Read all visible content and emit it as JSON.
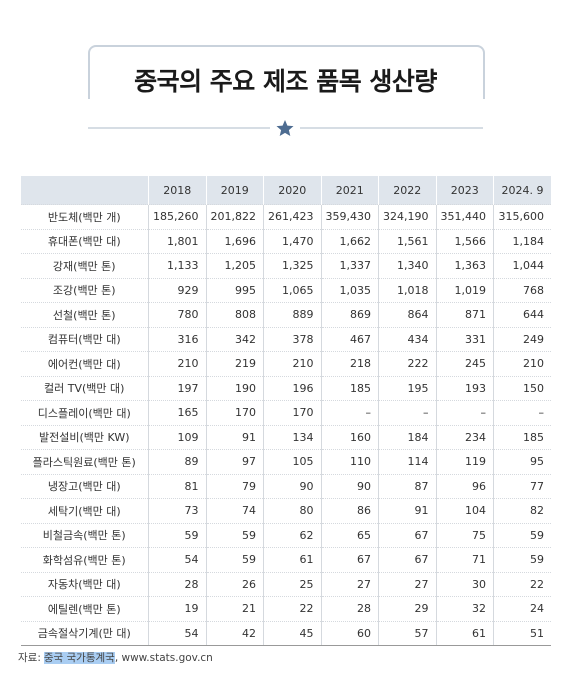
{
  "title": "중국의 주요 제조 품목 생산량",
  "table": {
    "header": [
      "2018",
      "2019",
      "2020",
      "2021",
      "2022",
      "2023",
      "2024. 9"
    ],
    "rows": [
      [
        "반도체(백만 개)",
        "185,260",
        "201,822",
        "261,423",
        "359,430",
        "324,190",
        "351,440",
        "315,600"
      ],
      [
        "휴대폰(백만 대)",
        "1,801",
        "1,696",
        "1,470",
        "1,662",
        "1,561",
        "1,566",
        "1,184"
      ],
      [
        "강재(백만 톤)",
        "1,133",
        "1,205",
        "1,325",
        "1,337",
        "1,340",
        "1,363",
        "1,044"
      ],
      [
        "조강(백만 톤)",
        "929",
        "995",
        "1,065",
        "1,035",
        "1,018",
        "1,019",
        "768"
      ],
      [
        "선철(백만 톤)",
        "780",
        "808",
        "889",
        "869",
        "864",
        "871",
        "644"
      ],
      [
        "컴퓨터(백만 대)",
        "316",
        "342",
        "378",
        "467",
        "434",
        "331",
        "249"
      ],
      [
        "에어컨(백만 대)",
        "210",
        "219",
        "210",
        "218",
        "222",
        "245",
        "210"
      ],
      [
        "컬러 TV(백만 대)",
        "197",
        "190",
        "196",
        "185",
        "195",
        "193",
        "150"
      ],
      [
        "디스플레이(백만 대)",
        "165",
        "170",
        "170",
        "–",
        "–",
        "–",
        "–"
      ],
      [
        "발전설비(백만 KW)",
        "109",
        "91",
        "134",
        "160",
        "184",
        "234",
        "185"
      ],
      [
        "플라스틱원료(백만 톤)",
        "89",
        "97",
        "105",
        "110",
        "114",
        "119",
        "95"
      ],
      [
        "냉장고(백만 대)",
        "81",
        "79",
        "90",
        "90",
        "87",
        "96",
        "77"
      ],
      [
        "세탁기(백만 대)",
        "73",
        "74",
        "80",
        "86",
        "91",
        "104",
        "82"
      ],
      [
        "비철금속(백만 톤)",
        "59",
        "59",
        "62",
        "65",
        "67",
        "75",
        "59"
      ],
      [
        "화학섬유(백만 톤)",
        "54",
        "59",
        "61",
        "67",
        "67",
        "71",
        "59"
      ],
      [
        "자동차(백만 대)",
        "28",
        "26",
        "25",
        "27",
        "27",
        "30",
        "22"
      ],
      [
        "에틸렌(백만 톤)",
        "19",
        "21",
        "22",
        "28",
        "29",
        "32",
        "24"
      ],
      [
        "금속절삭기계(만 대)",
        "54",
        "42",
        "45",
        "60",
        "57",
        "61",
        "51"
      ]
    ]
  },
  "source": {
    "label": "자료:",
    "organization": "중국 국가통계국",
    "url": ", www.stats.gov.cn"
  }
}
